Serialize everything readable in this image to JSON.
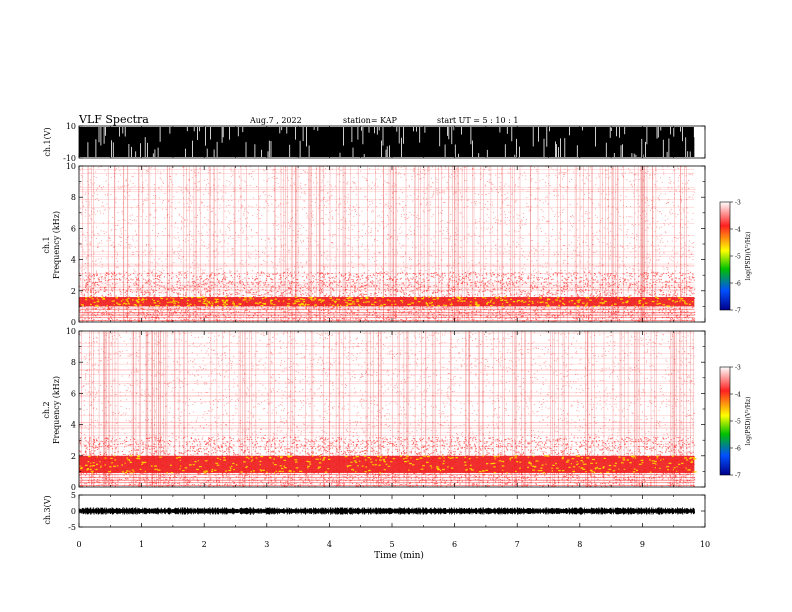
{
  "header": {
    "title": "VLF Spectra",
    "date": "Aug.7  , 2022",
    "station": "station= KAP",
    "start": "start  UT =   5  : 10 : 1"
  },
  "colorbar": {
    "label": "log(PSD)(V²/Hz)",
    "ticks": [
      "-3",
      "-4",
      "-5",
      "-6",
      "-7"
    ],
    "colors": [
      "#ffffff",
      "#ff2020",
      "#ffff00",
      "#00c000",
      "#0050ff",
      "#00008a"
    ]
  },
  "chart_data": {
    "type": "heatmap",
    "xlabel": "Time (min)",
    "xlim": [
      0,
      10
    ],
    "xticks": [
      "0",
      "1",
      "2",
      "3",
      "4",
      "5",
      "6",
      "7",
      "8",
      "9",
      "10"
    ],
    "data_end_min": 9.83,
    "panels": [
      {
        "id": "ch1-waveform",
        "kind": "waveform",
        "ylabel": "ch.1(V)",
        "ylim": [
          -10,
          10
        ],
        "yticks": [
          "10",
          "-10"
        ]
      },
      {
        "id": "ch1-spectrogram",
        "kind": "spectrogram",
        "ylabel_top": "ch.1",
        "ylabel": "Frequency  (kHz)",
        "ylim": [
          0,
          10
        ],
        "yticks": [
          "0",
          "2",
          "4",
          "6",
          "8",
          "10"
        ],
        "intense_band_khz": [
          1.0,
          1.6
        ],
        "colorbar_range": [
          -7,
          -3
        ]
      },
      {
        "id": "ch2-spectrogram",
        "kind": "spectrogram",
        "ylabel_top": "ch.2",
        "ylabel": "Frequency  (kHz)",
        "ylim": [
          0,
          10
        ],
        "yticks": [
          "0",
          "2",
          "4",
          "6",
          "8",
          "10"
        ],
        "intense_band_khz": [
          0.9,
          2.0
        ],
        "colorbar_range": [
          -7,
          -3
        ]
      },
      {
        "id": "ch3-waveform",
        "kind": "waveform",
        "ylabel": "ch.3(V)",
        "ylim": [
          -5,
          5
        ],
        "yticks": [
          "5",
          "0",
          "-5"
        ]
      }
    ]
  }
}
